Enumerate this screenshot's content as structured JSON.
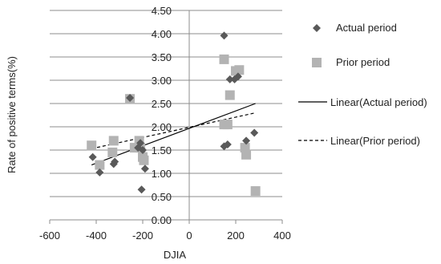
{
  "chart_data": {
    "type": "scatter",
    "title": "",
    "xlabel": "DJIA",
    "ylabel": "Rate of positive terms(%)",
    "xlim": [
      -600,
      400
    ],
    "ylim": [
      0,
      4.5
    ],
    "xticks": [
      -600,
      -400,
      -200,
      0,
      200,
      400
    ],
    "yticks": [
      0,
      0.5,
      1,
      1.5,
      2,
      2.5,
      3,
      3.5,
      4,
      4.5
    ],
    "xtick_labels": [
      "-600",
      "-400",
      "-200",
      "0",
      "200",
      "400"
    ],
    "ytick_labels": [
      "0.00",
      "0.50",
      "1.00",
      "1.50",
      "2.00",
      "2.50",
      "3.00",
      "3.50",
      "4.00",
      "4.50"
    ],
    "grid": "horizontal",
    "legend_position": "right",
    "series": [
      {
        "name": "Actual period",
        "marker": "diamond",
        "color": "#595959",
        "points": [
          [
            -415,
            1.35
          ],
          [
            -385,
            1.02
          ],
          [
            -325,
            1.2
          ],
          [
            -320,
            1.25
          ],
          [
            -255,
            2.62
          ],
          [
            -220,
            1.55
          ],
          [
            -210,
            1.65
          ],
          [
            -205,
            0.65
          ],
          [
            -190,
            1.1
          ],
          [
            -200,
            1.5
          ],
          [
            150,
            3.96
          ],
          [
            150,
            1.58
          ],
          [
            165,
            1.62
          ],
          [
            175,
            3.02
          ],
          [
            195,
            3.02
          ],
          [
            210,
            3.08
          ],
          [
            245,
            1.7
          ],
          [
            280,
            1.87
          ]
        ]
      },
      {
        "name": "Prior period",
        "marker": "square",
        "color": "#b3b3b3",
        "points": [
          [
            -420,
            1.6
          ],
          [
            -385,
            1.18
          ],
          [
            -325,
            1.7
          ],
          [
            -330,
            1.45
          ],
          [
            -255,
            2.6
          ],
          [
            -215,
            1.7
          ],
          [
            -210,
            1.55
          ],
          [
            -200,
            1.35
          ],
          [
            -195,
            1.28
          ],
          [
            -235,
            1.55
          ],
          [
            150,
            3.45
          ],
          [
            150,
            2.05
          ],
          [
            165,
            2.05
          ],
          [
            175,
            2.68
          ],
          [
            200,
            3.2
          ],
          [
            215,
            3.22
          ],
          [
            240,
            1.55
          ],
          [
            245,
            1.4
          ],
          [
            285,
            0.62
          ]
        ]
      }
    ],
    "trendlines": [
      {
        "name": "Linear(Actual period)",
        "style": "solid",
        "color": "#000000",
        "x": [
          -420,
          285
        ],
        "y": [
          1.18,
          2.5
        ]
      },
      {
        "name": "Linear(Prior period)",
        "style": "dashed",
        "color": "#000000",
        "x": [
          -420,
          285
        ],
        "y": [
          1.53,
          2.3
        ]
      }
    ]
  }
}
